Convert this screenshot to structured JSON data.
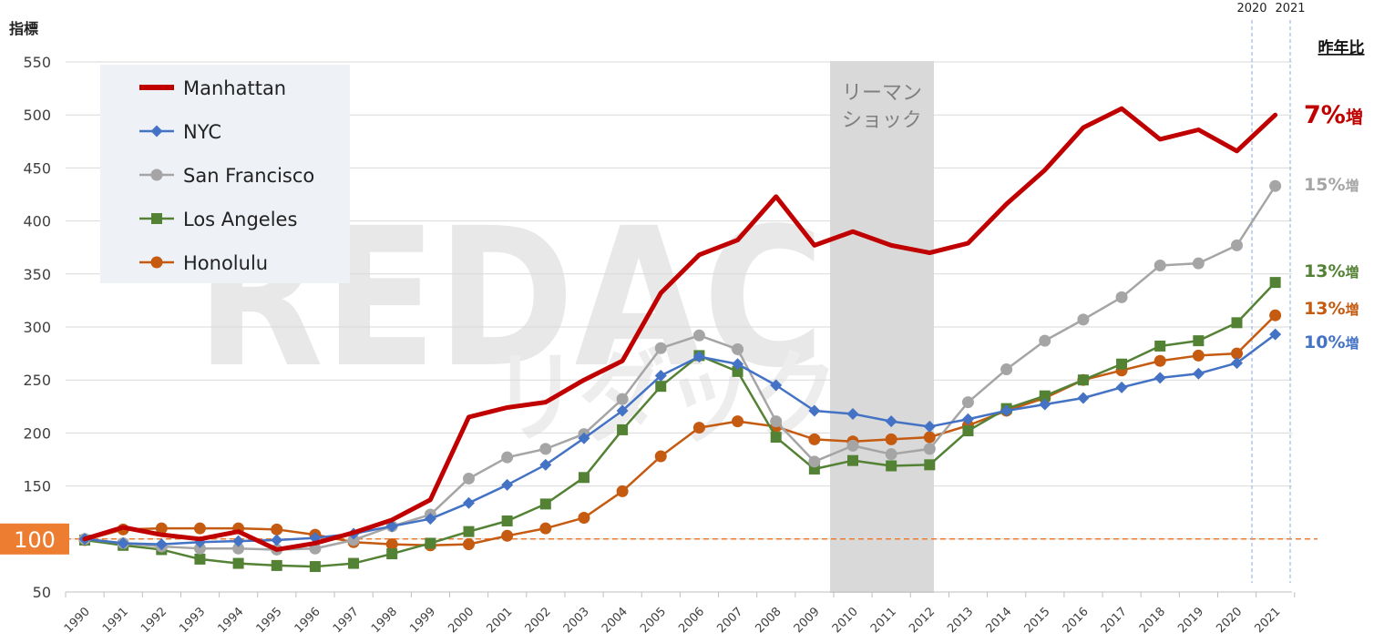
{
  "chart_data": {
    "type": "line",
    "ylabel": "指標",
    "ylim": [
      50,
      550
    ],
    "yticks": [
      50,
      100,
      150,
      200,
      250,
      300,
      350,
      400,
      450,
      500,
      550
    ],
    "baseline": {
      "value": 100,
      "label": "100",
      "color": "#ed7d31"
    },
    "x": [
      "1990",
      "1991",
      "1992",
      "1993",
      "1994",
      "1995",
      "1996",
      "1997",
      "1998",
      "1999",
      "2000",
      "2001",
      "2002",
      "2003",
      "2004",
      "2005",
      "2006",
      "2007",
      "2008",
      "2009",
      "2010",
      "2011",
      "2012",
      "2013",
      "2014",
      "2015",
      "2016",
      "2017",
      "2018",
      "2019",
      "2020",
      "2021"
    ],
    "grid": "horizontal",
    "legend_placement": "top-left",
    "annotation": {
      "label": "リーマン\nショック",
      "from": "2009",
      "to": "2012"
    },
    "top_labels": [
      "2020",
      "2021"
    ],
    "change_header": "昨年比",
    "watermark": {
      "main": "REDAC",
      "sub": "リダック"
    },
    "series": [
      {
        "name": "Manhattan",
        "color": "#c00000",
        "marker": "none",
        "change": "7%",
        "change_suffix": "増",
        "values": [
          100,
          111,
          104,
          100,
          107,
          90,
          96,
          106,
          118,
          137,
          215,
          224,
          229,
          250,
          268,
          332,
          368,
          382,
          423,
          377,
          390,
          377,
          370,
          379,
          416,
          448,
          488,
          506,
          477,
          486,
          466,
          500
        ]
      },
      {
        "name": "NYC",
        "color": "#4472c4",
        "marker": "diamond",
        "change": "10%",
        "change_suffix": "増",
        "values": [
          100,
          96,
          95,
          97,
          98,
          99,
          101,
          105,
          112,
          119,
          134,
          151,
          170,
          195,
          221,
          254,
          272,
          265,
          245,
          221,
          218,
          211,
          206,
          213,
          221,
          227,
          233,
          243,
          252,
          256,
          266,
          293
        ]
      },
      {
        "name": "San Francisco",
        "color": "#a5a5a5",
        "marker": "circle",
        "change": "15%",
        "change_suffix": "増",
        "values": [
          100,
          96,
          93,
          91,
          91,
          90,
          91,
          99,
          112,
          123,
          157,
          177,
          185,
          199,
          232,
          280,
          292,
          279,
          211,
          173,
          188,
          180,
          185,
          229,
          260,
          287,
          307,
          328,
          358,
          360,
          377,
          433
        ]
      },
      {
        "name": "Los Angeles",
        "color": "#548235",
        "marker": "square",
        "change": "13%",
        "change_suffix": "増",
        "values": [
          99,
          94,
          90,
          81,
          77,
          75,
          74,
          77,
          86,
          96,
          107,
          117,
          133,
          158,
          203,
          244,
          273,
          258,
          196,
          166,
          174,
          169,
          170,
          202,
          223,
          235,
          250,
          265,
          282,
          287,
          304,
          342
        ]
      },
      {
        "name": "Honolulu",
        "color": "#c55a11",
        "marker": "circle",
        "change": "13%",
        "change_suffix": "増",
        "values": [
          99,
          109,
          110,
          110,
          110,
          109,
          104,
          97,
          95,
          94,
          95,
          103,
          110,
          120,
          145,
          178,
          205,
          211,
          206,
          194,
          192,
          194,
          196,
          207,
          221,
          233,
          250,
          259,
          268,
          273,
          275,
          311
        ]
      }
    ]
  }
}
